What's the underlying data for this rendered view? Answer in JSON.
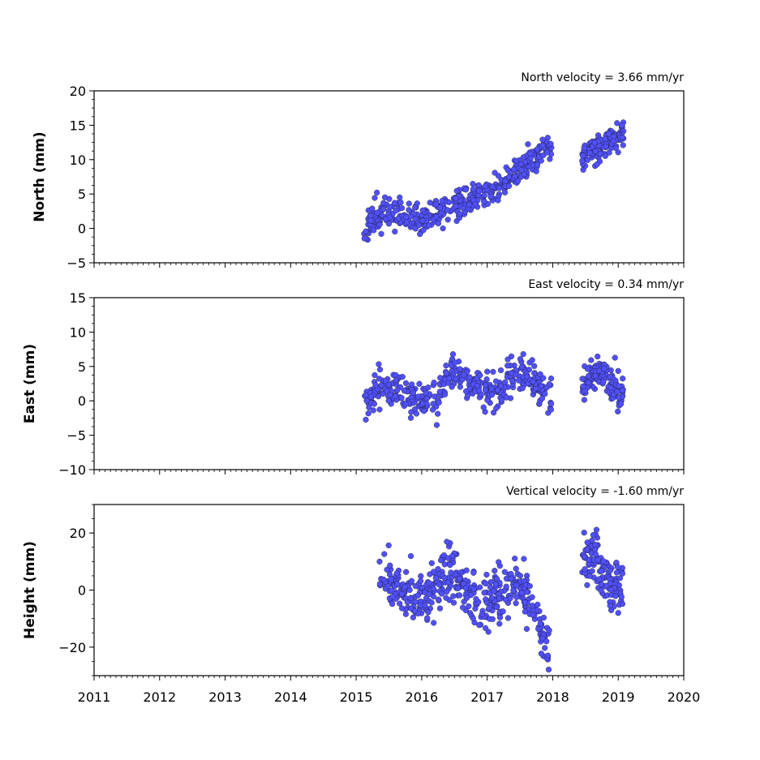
{
  "chart_data": {
    "type": "scatter",
    "x_axis": {
      "range": [
        2011,
        2020
      ],
      "ticks": [
        2011,
        2012,
        2013,
        2014,
        2015,
        2016,
        2017,
        2018,
        2019,
        2020
      ],
      "tick_labels": [
        "2011",
        "2012",
        "2013",
        "2014",
        "2015",
        "2016",
        "2017",
        "2018",
        "2019",
        "2020"
      ],
      "minor_per_year": 12
    },
    "marker_color": "#5050ff",
    "marker_edge": "#1a1a1a",
    "panels": [
      {
        "id": "north",
        "title": "North velocity = 3.66 mm/yr",
        "ylabel": "North (mm)",
        "ylim": [
          -5,
          20
        ],
        "yticks": [
          -5,
          0,
          5,
          10,
          15,
          20
        ],
        "ytick_labels": [
          "−5",
          "0",
          "5",
          "10",
          "15",
          "20"
        ],
        "yminor_step": 1.25,
        "seed": 11,
        "segments": [
          {
            "start": 2015.12,
            "end": 2017.98,
            "points": 420
          },
          {
            "start": 2018.45,
            "end": 2019.08,
            "points": 130
          }
        ],
        "trend_knots": [
          [
            2015.12,
            0.0
          ],
          [
            2015.5,
            2.5
          ],
          [
            2016.0,
            1.5
          ],
          [
            2016.5,
            3.5
          ],
          [
            2017.0,
            5.0
          ],
          [
            2017.5,
            8.0
          ],
          [
            2017.98,
            12.5
          ],
          [
            2018.45,
            10.5
          ],
          [
            2019.08,
            14.0
          ]
        ],
        "noise": 1.1
      },
      {
        "id": "east",
        "title": "East velocity = 0.34 mm/yr",
        "ylabel": "East (mm)",
        "ylim": [
          -10,
          15
        ],
        "yticks": [
          -10,
          -5,
          0,
          5,
          10,
          15
        ],
        "ytick_labels": [
          "−10",
          "−5",
          "0",
          "5",
          "10",
          "15"
        ],
        "yminor_step": 1.25,
        "seed": 23,
        "segments": [
          {
            "start": 2015.12,
            "end": 2017.98,
            "points": 420
          },
          {
            "start": 2018.45,
            "end": 2019.08,
            "points": 130
          }
        ],
        "trend_knots": [
          [
            2015.12,
            -0.5
          ],
          [
            2015.4,
            2.5
          ],
          [
            2015.7,
            1.5
          ],
          [
            2016.0,
            0.5
          ],
          [
            2016.15,
            -0.5
          ],
          [
            2016.45,
            4.5
          ],
          [
            2016.75,
            2.5
          ],
          [
            2017.0,
            1.5
          ],
          [
            2017.15,
            1.0
          ],
          [
            2017.45,
            4.5
          ],
          [
            2017.7,
            3.0
          ],
          [
            2017.98,
            0.5
          ],
          [
            2018.45,
            2.5
          ],
          [
            2018.75,
            4.0
          ],
          [
            2019.08,
            1.0
          ]
        ],
        "noise": 1.2
      },
      {
        "id": "height",
        "title": "Vertical velocity = -1.60 mm/yr",
        "ylabel": "Height (mm)",
        "ylim": [
          -30,
          30
        ],
        "yticks": [
          -20,
          0,
          20
        ],
        "ytick_labels": [
          "−20",
          "0",
          "20"
        ],
        "yminor_step": 5,
        "seed": 37,
        "segments": [
          {
            "start": 2015.35,
            "end": 2017.95,
            "points": 420
          },
          {
            "start": 2018.45,
            "end": 2019.08,
            "points": 130
          }
        ],
        "trend_knots": [
          [
            2015.35,
            5.0
          ],
          [
            2015.6,
            0.0
          ],
          [
            2016.0,
            -3.0
          ],
          [
            2016.2,
            0.0
          ],
          [
            2016.4,
            8.0
          ],
          [
            2016.7,
            -2.0
          ],
          [
            2017.0,
            -5.0
          ],
          [
            2017.3,
            -1.0
          ],
          [
            2017.5,
            3.0
          ],
          [
            2017.7,
            -8.0
          ],
          [
            2017.95,
            -22.0
          ],
          [
            2018.45,
            9.0
          ],
          [
            2018.65,
            14.0
          ],
          [
            2018.8,
            3.0
          ],
          [
            2019.08,
            0.0
          ]
        ],
        "noise": 4.5
      }
    ]
  }
}
